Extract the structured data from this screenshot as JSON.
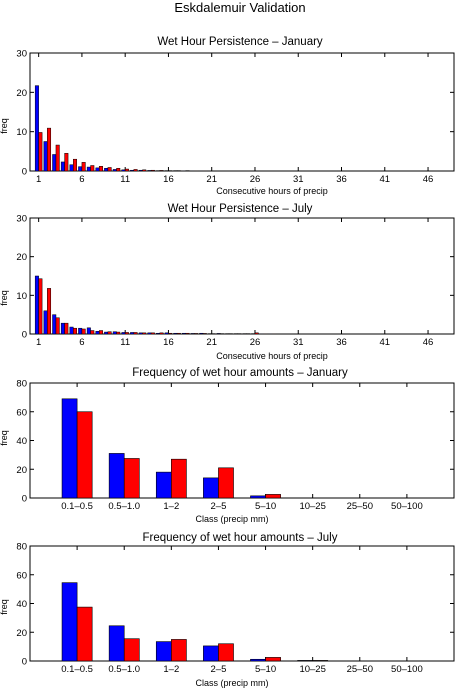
{
  "figure": {
    "suptitle": "Eskdalemuir Validation",
    "series_colors": [
      "#0000ff",
      "#ff0000"
    ]
  },
  "chart_data": [
    {
      "type": "bar",
      "title": "Wet Hour Persistence – January",
      "xlabel": "Consecutive hours of precip",
      "ylabel": "freq",
      "ylim": [
        0,
        30
      ],
      "yticks": [
        0,
        10,
        20,
        30
      ],
      "xlim": [
        0,
        49
      ],
      "xticks": [
        1,
        6,
        11,
        16,
        21,
        26,
        31,
        36,
        41,
        46
      ],
      "categories": [
        1,
        2,
        3,
        4,
        5,
        6,
        7,
        8,
        9,
        10,
        11,
        12,
        13,
        14,
        15,
        16,
        17,
        18,
        19,
        20
      ],
      "series": [
        {
          "color": "#0000ff",
          "values": [
            21.7,
            7.5,
            4.2,
            2.3,
            1.6,
            1.1,
            1.0,
            0.8,
            0.7,
            0.4,
            0.3,
            0.2,
            0.2,
            0.15,
            0.1,
            0.1,
            0.1,
            0.05,
            0.05,
            0.05
          ]
        },
        {
          "color": "#ff0000",
          "values": [
            9.8,
            10.9,
            6.6,
            4.5,
            3.0,
            2.2,
            1.4,
            1.2,
            0.9,
            0.7,
            0.5,
            0.4,
            0.3,
            0.2,
            0.15,
            0.1,
            0.1,
            0.1,
            0.05,
            0.05
          ]
        }
      ]
    },
    {
      "type": "bar",
      "title": "Wet Hour Persistence – July",
      "xlabel": "Consecutive hours of precip",
      "ylabel": "freq",
      "ylim": [
        0,
        30
      ],
      "yticks": [
        0,
        10,
        20,
        30
      ],
      "xlim": [
        0,
        49
      ],
      "xticks": [
        1,
        6,
        11,
        16,
        21,
        26,
        31,
        36,
        41,
        46
      ],
      "categories": [
        1,
        2,
        3,
        4,
        5,
        6,
        7,
        8,
        9,
        10,
        11,
        12,
        13,
        14,
        15,
        16,
        17,
        18,
        19,
        20,
        21,
        22,
        23,
        24,
        25,
        26,
        27,
        28
      ],
      "series": [
        {
          "color": "#0000ff",
          "values": [
            15.0,
            6.0,
            5.0,
            2.8,
            1.8,
            1.5,
            1.6,
            0.7,
            0.5,
            0.6,
            0.4,
            0.4,
            0.3,
            0.3,
            0.2,
            0.3,
            0.2,
            0.2,
            0.15,
            0.2,
            0.1,
            0.15,
            0.1,
            0.1,
            0.1,
            0.1,
            0.05,
            0.05
          ]
        },
        {
          "color": "#ff0000",
          "values": [
            14.3,
            11.8,
            4.2,
            2.8,
            1.5,
            1.3,
            0.9,
            0.9,
            0.6,
            0.5,
            0.4,
            0.4,
            0.3,
            0.3,
            0.3,
            0.2,
            0.2,
            0.2,
            0.15,
            0.15,
            0.1,
            0.1,
            0.1,
            0.1,
            0.1,
            0.3,
            0.05,
            0.05
          ]
        }
      ]
    },
    {
      "type": "bar",
      "title": "Frequency of wet hour amounts – January",
      "xlabel": "Class (precip mm)",
      "ylabel": "freq",
      "ylim": [
        0,
        80
      ],
      "yticks": [
        0,
        20,
        40,
        60,
        80
      ],
      "categories": [
        "0.1–0.5",
        "0.5–1.0",
        "1–2",
        "2–5",
        "5–10",
        "10–25",
        "25–50",
        "50–100"
      ],
      "series": [
        {
          "color": "#0000ff",
          "values": [
            69,
            31,
            18,
            14,
            1.5,
            0,
            0,
            0
          ]
        },
        {
          "color": "#ff0000",
          "values": [
            60,
            27.5,
            27,
            21,
            2.5,
            0,
            0,
            0
          ]
        }
      ]
    },
    {
      "type": "bar",
      "title": "Frequency of wet hour amounts – July",
      "xlabel": "Class (precip mm)",
      "ylabel": "freq",
      "ylim": [
        0,
        80
      ],
      "yticks": [
        0,
        20,
        40,
        60,
        80
      ],
      "categories": [
        "0.1–0.5",
        "0.5–1.0",
        "1–2",
        "2–5",
        "5–10",
        "10–25",
        "25–50",
        "50–100"
      ],
      "series": [
        {
          "color": "#0000ff",
          "values": [
            54.5,
            24.5,
            13.5,
            10.5,
            1.2,
            0.4,
            0,
            0
          ]
        },
        {
          "color": "#ff0000",
          "values": [
            37.5,
            15.5,
            15,
            12,
            2.5,
            0.4,
            0,
            0
          ]
        }
      ]
    }
  ]
}
